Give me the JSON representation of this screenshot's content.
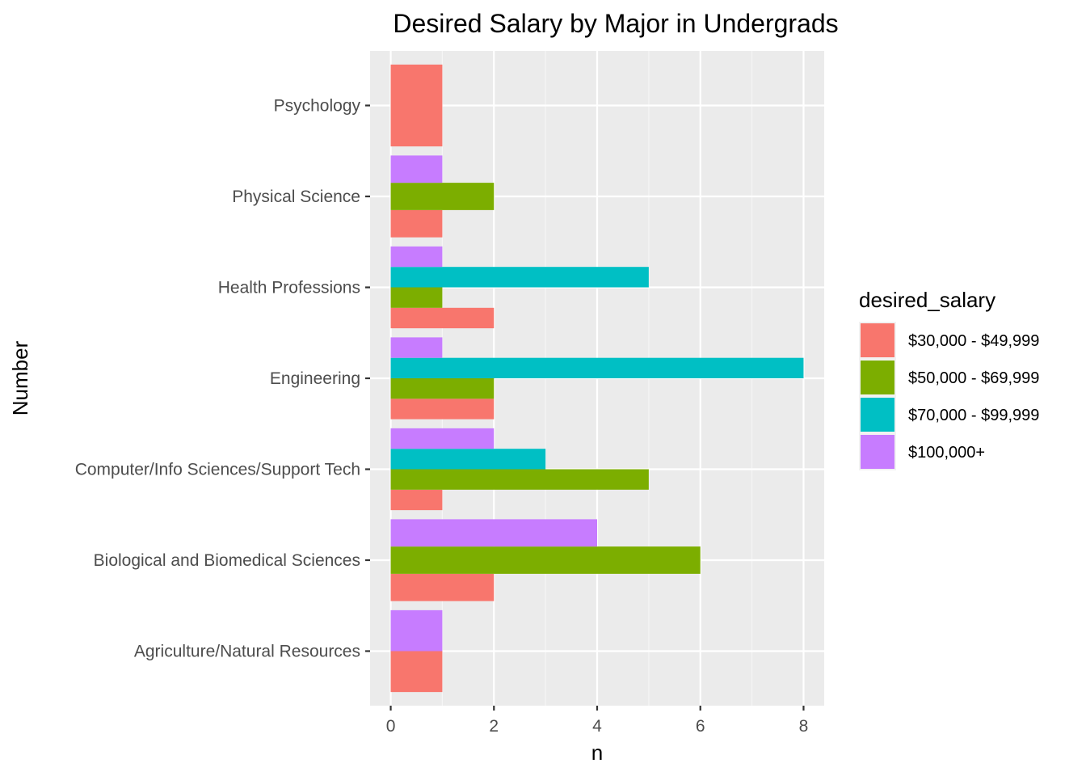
{
  "chart_data": {
    "type": "bar",
    "orientation": "horizontal",
    "position": "dodge",
    "title": "Desired Salary by Major in Undergrads",
    "xlabel": "n",
    "ylabel": "Number",
    "xlim": [
      -0.4,
      8.4
    ],
    "x_ticks": [
      "0",
      "2",
      "4",
      "6",
      "8"
    ],
    "grid": true,
    "legend_position": "right",
    "legend_title": "desired_salary",
    "categories": [
      "Agriculture/Natural Resources",
      "Biological and Biomedical Sciences",
      "Computer/Info Sciences/Support Tech",
      "Engineering",
      "Health Professions",
      "Physical Science",
      "Psychology"
    ],
    "series": [
      {
        "name": "$30,000 - $49,999",
        "color": "#F8766D",
        "values": [
          1,
          2,
          1,
          2,
          2,
          1,
          1
        ]
      },
      {
        "name": "$50,000 - $69,999",
        "color": "#7CAE00",
        "values": [
          null,
          6,
          5,
          2,
          1,
          2,
          null
        ]
      },
      {
        "name": "$70,000 - $99,999",
        "color": "#00BFC4",
        "values": [
          null,
          null,
          3,
          8,
          5,
          null,
          null
        ]
      },
      {
        "name": "$100,000+",
        "color": "#C77CFF",
        "values": [
          1,
          4,
          2,
          1,
          1,
          1,
          null
        ]
      }
    ]
  }
}
